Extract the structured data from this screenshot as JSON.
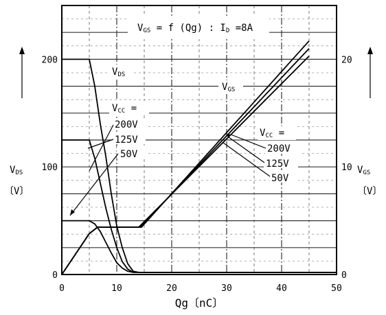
{
  "chart_data": {
    "type": "line",
    "title": "VGS = f (Qg) : ID = 8A",
    "title_parts": {
      "v": "V",
      "gs_sub": "GS",
      "eq": " = f (Qg) : I",
      "d_sub": "D",
      "tail": " =8A"
    },
    "xlabel": "Qg〔nC〕",
    "left_axis": {
      "label_main": "V",
      "label_sub": "DS",
      "unit": "〔V〕",
      "range": [
        0,
        250
      ]
    },
    "right_axis": {
      "label_main": "V",
      "label_sub": "GS",
      "unit": "〔V〕",
      "range": [
        0,
        25
      ]
    },
    "xlim": [
      0,
      50
    ],
    "x_ticks": [
      "0",
      "10",
      "20",
      "30",
      "40",
      "50"
    ],
    "x_tick_values": [
      0,
      10,
      20,
      30,
      40,
      50
    ],
    "left_ticks": [
      "0",
      "100",
      "200"
    ],
    "left_tick_values": [
      0,
      100,
      200
    ],
    "right_ticks": [
      "0",
      "10",
      "20"
    ],
    "right_tick_values": [
      0,
      10,
      20
    ],
    "grid": true,
    "vds_label": {
      "main": "V",
      "sub": "DS"
    },
    "vgs_label": {
      "main": "V",
      "sub": "GS"
    },
    "vcc_label_left": {
      "main": "V",
      "sub": "CC",
      "eq": " ="
    },
    "vcc_label_right": {
      "main": "V",
      "sub": "CC",
      "eq": " ="
    },
    "left_legend": [
      "200V",
      "125V",
      "50V"
    ],
    "right_legend": [
      "200V",
      "125V",
      "50V"
    ],
    "series": [
      {
        "name": "200V",
        "axis": "left",
        "x": [
          0,
          5,
          6,
          7,
          8,
          9,
          10,
          11,
          12,
          13,
          14,
          16,
          50
        ],
        "y": [
          200,
          200,
          175,
          140,
          110,
          75,
          45,
          25,
          10,
          3,
          2,
          2,
          2
        ]
      },
      {
        "name": "125V",
        "axis": "left",
        "x": [
          0,
          5,
          6,
          7,
          8,
          9,
          10,
          11,
          12,
          13,
          15,
          50
        ],
        "y": [
          125,
          125,
          108,
          85,
          62,
          42,
          25,
          12,
          5,
          2,
          2,
          2
        ]
      },
      {
        "name": "50V",
        "axis": "left",
        "x": [
          0,
          5,
          6,
          7,
          8,
          9,
          10,
          11,
          12,
          13,
          50
        ],
        "y": [
          50,
          50,
          47,
          40,
          30,
          20,
          11,
          6,
          3,
          2,
          2
        ]
      },
      {
        "name": "200V",
        "axis": "right",
        "x": [
          0,
          5,
          6.5,
          14.5,
          45
        ],
        "y": [
          0,
          3.8,
          4.4,
          4.4,
          21.7
        ]
      },
      {
        "name": "125V",
        "axis": "right",
        "x": [
          0,
          5,
          6.5,
          14.3,
          45
        ],
        "y": [
          0,
          3.8,
          4.4,
          4.4,
          21.0
        ]
      },
      {
        "name": "50V",
        "axis": "right",
        "x": [
          0,
          5,
          6.5,
          14,
          45
        ],
        "y": [
          0,
          3.8,
          4.4,
          4.4,
          20.3
        ]
      }
    ]
  }
}
